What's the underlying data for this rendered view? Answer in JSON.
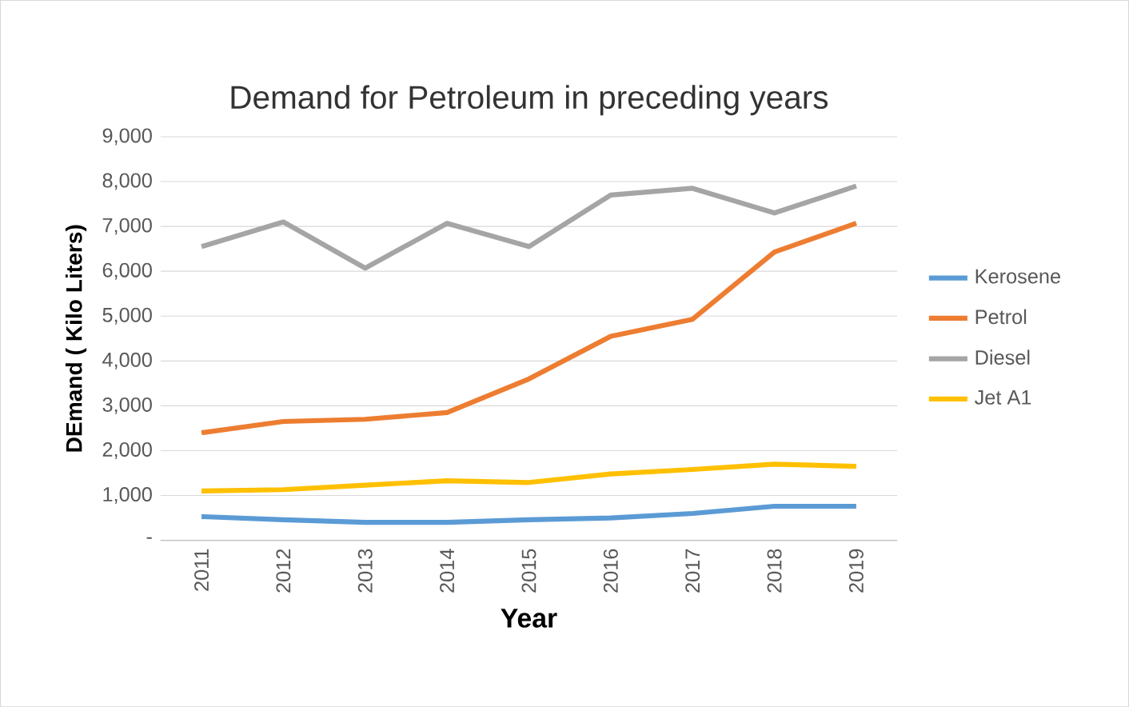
{
  "chart_data": {
    "type": "line",
    "title": "Demand for Petroleum in preceding years",
    "xlabel": "Year",
    "ylabel": "DEmand ( Kilo Liters)",
    "categories": [
      "2011",
      "2012",
      "2013",
      "2014",
      "2015",
      "2016",
      "2017",
      "2018",
      "2019"
    ],
    "series": [
      {
        "name": "Kerosene",
        "color": "#5b9bd5",
        "values": [
          530,
          460,
          400,
          400,
          460,
          500,
          600,
          760,
          760
        ]
      },
      {
        "name": "Petrol",
        "color": "#ed7d31",
        "values": [
          2400,
          2650,
          2700,
          2850,
          3600,
          4550,
          4930,
          6430,
          7070
        ]
      },
      {
        "name": "Diesel",
        "color": "#a5a5a5",
        "values": [
          6550,
          7100,
          6070,
          7070,
          6550,
          7700,
          7850,
          7300,
          7900
        ]
      },
      {
        "name": "Jet A1",
        "color": "#ffc000",
        "values": [
          1100,
          1130,
          1230,
          1330,
          1290,
          1480,
          1580,
          1700,
          1650
        ]
      }
    ],
    "ylim": [
      0,
      9000
    ],
    "yticks": [
      {
        "value": 0,
        "label": "-"
      },
      {
        "value": 1000,
        "label": "1,000"
      },
      {
        "value": 2000,
        "label": "2,000"
      },
      {
        "value": 3000,
        "label": "3,000"
      },
      {
        "value": 4000,
        "label": "4,000"
      },
      {
        "value": 5000,
        "label": "5,000"
      },
      {
        "value": 6000,
        "label": "6,000"
      },
      {
        "value": 7000,
        "label": "7,000"
      },
      {
        "value": 8000,
        "label": "8,000"
      },
      {
        "value": 9000,
        "label": "9,000"
      }
    ],
    "grid": "y",
    "legend": "right",
    "marker": "none",
    "line_style": "solid"
  }
}
